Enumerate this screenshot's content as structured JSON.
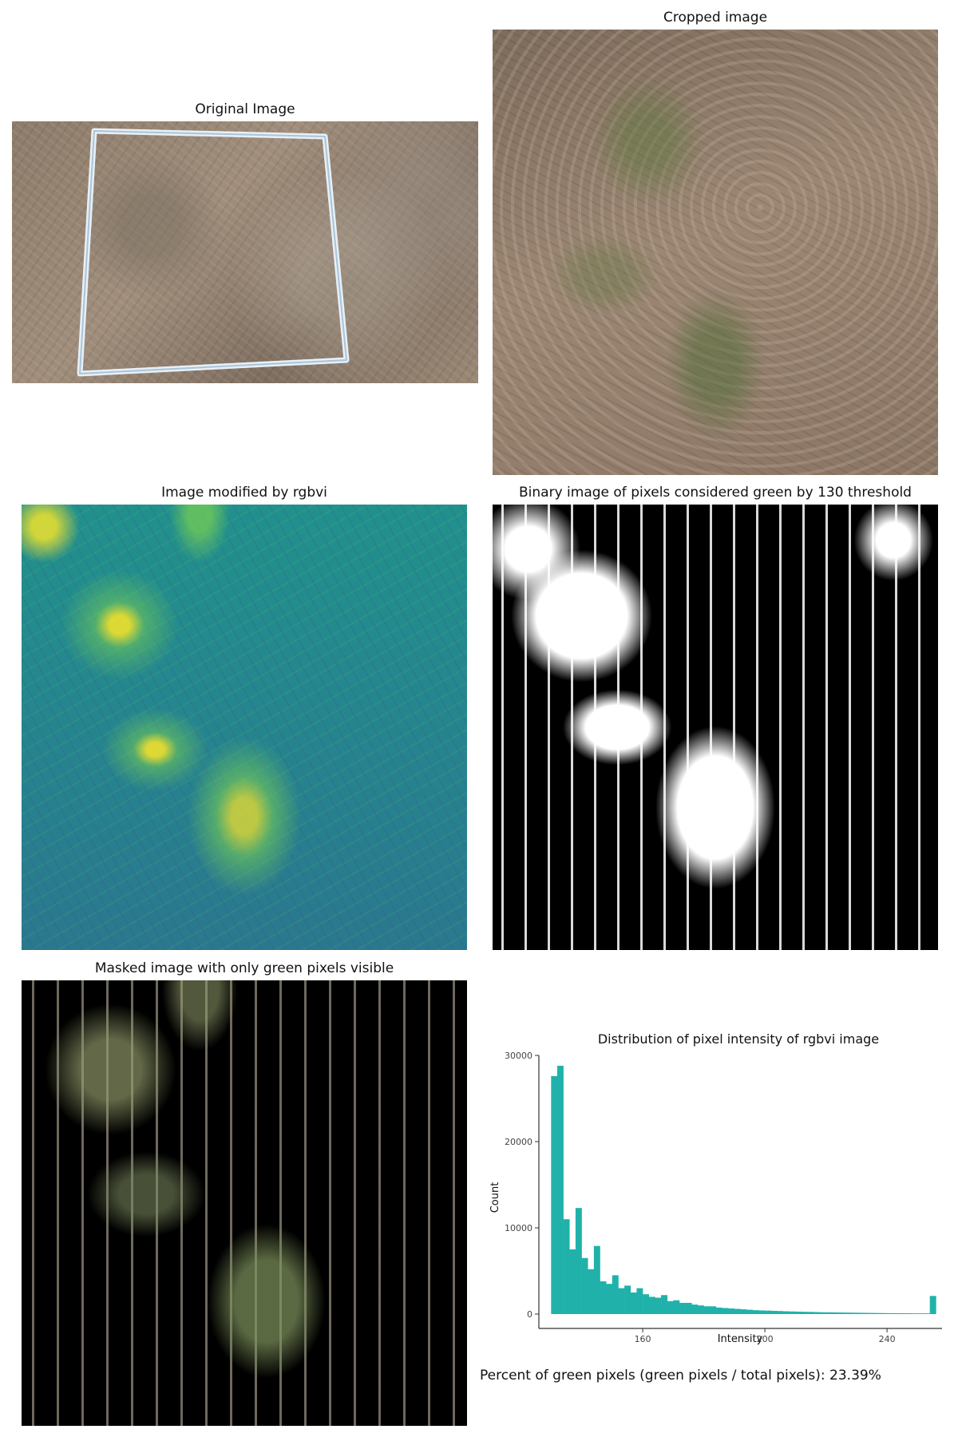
{
  "panels": {
    "original": {
      "title": "Original Image"
    },
    "cropped": {
      "title": "Cropped image"
    },
    "rgbvi": {
      "title": "Image modified by rgbvi"
    },
    "binary": {
      "title": "Binary image of pixels considered green by 130 threshold"
    },
    "masked": {
      "title": "Masked image with only green pixels visible"
    }
  },
  "footer": {
    "text": "Percent of green pixels (green pixels / total pixels): 23.39%"
  },
  "colors": {
    "bar": "#20b2aa",
    "axis": "#333333"
  },
  "chart_data": {
    "type": "bar",
    "title": "Distribution of pixel intensity of rgbvi image",
    "xlabel": "Intensity",
    "ylabel": "Count",
    "xlim": [
      126,
      258
    ],
    "ylim": [
      0,
      30000
    ],
    "bin_width": 2,
    "x_ticks": [
      160,
      200,
      240
    ],
    "y_ticks": [
      0,
      10000,
      20000,
      30000
    ],
    "grid": false,
    "x": [
      130,
      132,
      134,
      136,
      138,
      140,
      142,
      144,
      146,
      148,
      150,
      152,
      154,
      156,
      158,
      160,
      162,
      164,
      166,
      168,
      170,
      172,
      174,
      176,
      178,
      180,
      182,
      184,
      186,
      188,
      190,
      192,
      194,
      196,
      198,
      200,
      202,
      204,
      206,
      208,
      210,
      212,
      214,
      216,
      218,
      220,
      222,
      224,
      226,
      228,
      230,
      232,
      234,
      236,
      238,
      240,
      242,
      244,
      246,
      248,
      250,
      252,
      254
    ],
    "values": [
      27600,
      28800,
      11000,
      7500,
      12300,
      6500,
      5200,
      7900,
      3800,
      3500,
      4500,
      3000,
      3300,
      2500,
      3000,
      2300,
      2000,
      1900,
      2200,
      1500,
      1600,
      1300,
      1300,
      1100,
      1000,
      900,
      900,
      750,
      700,
      650,
      600,
      550,
      500,
      450,
      420,
      400,
      370,
      350,
      320,
      300,
      280,
      260,
      250,
      230,
      210,
      200,
      190,
      180,
      170,
      160,
      150,
      140,
      130,
      120,
      110,
      100,
      100,
      90,
      90,
      80,
      80,
      80,
      2100
    ]
  }
}
